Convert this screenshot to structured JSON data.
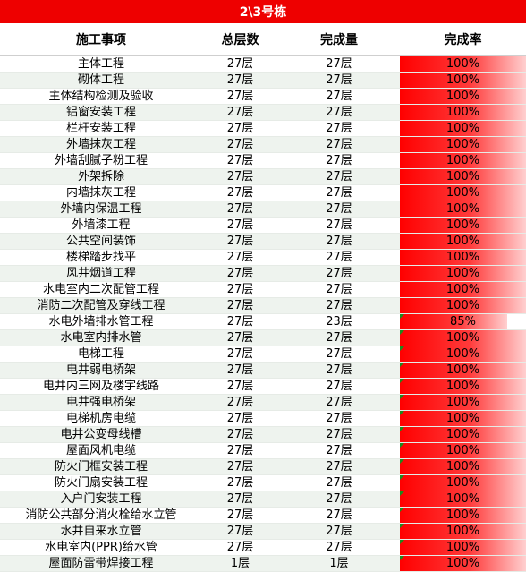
{
  "title": "2\\3号栋",
  "headers": {
    "name": "施工事项",
    "total": "总层数",
    "done": "完成量",
    "rate": "完成率"
  },
  "rows": [
    {
      "name": "主体工程",
      "total": "27层",
      "done": "27层",
      "rate": "100%",
      "pct": 1.0
    },
    {
      "name": "砌体工程",
      "total": "27层",
      "done": "27层",
      "rate": "100%",
      "pct": 1.0
    },
    {
      "name": "主体结构检测及验收",
      "total": "27层",
      "done": "27层",
      "rate": "100%",
      "pct": 1.0
    },
    {
      "name": "铝窗安装工程",
      "total": "27层",
      "done": "27层",
      "rate": "100%",
      "pct": 1.0
    },
    {
      "name": "栏杆安装工程",
      "total": "27层",
      "done": "27层",
      "rate": "100%",
      "pct": 1.0
    },
    {
      "name": "外墙抹灰工程",
      "total": "27层",
      "done": "27层",
      "rate": "100%",
      "pct": 1.0
    },
    {
      "name": "外墙刮腻子粉工程",
      "total": "27层",
      "done": "27层",
      "rate": "100%",
      "pct": 1.0
    },
    {
      "name": "外架拆除",
      "total": "27层",
      "done": "27层",
      "rate": "100%",
      "pct": 1.0
    },
    {
      "name": "内墙抹灰工程",
      "total": "27层",
      "done": "27层",
      "rate": "100%",
      "pct": 1.0
    },
    {
      "name": "外墙内保温工程",
      "total": "27层",
      "done": "27层",
      "rate": "100%",
      "pct": 1.0
    },
    {
      "name": "外墙漆工程",
      "total": "27层",
      "done": "27层",
      "rate": "100%",
      "pct": 1.0
    },
    {
      "name": "公共空间装饰",
      "total": "27层",
      "done": "27层",
      "rate": "100%",
      "pct": 1.0
    },
    {
      "name": "楼梯踏步找平",
      "total": "27层",
      "done": "27层",
      "rate": "100%",
      "pct": 1.0
    },
    {
      "name": "风井烟道工程",
      "total": "27层",
      "done": "27层",
      "rate": "100%",
      "pct": 1.0
    },
    {
      "name": "水电室内二次配管工程",
      "total": "27层",
      "done": "27层",
      "rate": "100%",
      "pct": 1.0
    },
    {
      "name": "消防二次配管及穿线工程",
      "total": "27层",
      "done": "27层",
      "rate": "100%",
      "pct": 1.0
    },
    {
      "name": "水电外墙排水管工程",
      "total": "27层",
      "done": "23层",
      "rate": "85%",
      "pct": 0.85
    },
    {
      "name": "水电室内排水管",
      "total": "27层",
      "done": "27层",
      "rate": "100%",
      "pct": 1.0
    },
    {
      "name": "电梯工程",
      "total": "27层",
      "done": "27层",
      "rate": "100%",
      "pct": 1.0
    },
    {
      "name": "电井弱电桥架",
      "total": "27层",
      "done": "27层",
      "rate": "100%",
      "pct": 1.0
    },
    {
      "name": "电井内三网及楼宇线路",
      "total": "27层",
      "done": "27层",
      "rate": "100%",
      "pct": 1.0
    },
    {
      "name": "电井强电桥架",
      "total": "27层",
      "done": "27层",
      "rate": "100%",
      "pct": 1.0
    },
    {
      "name": "电梯机房电缆",
      "total": "27层",
      "done": "27层",
      "rate": "100%",
      "pct": 1.0
    },
    {
      "name": "电井公变母线槽",
      "total": "27层",
      "done": "27层",
      "rate": "100%",
      "pct": 1.0
    },
    {
      "name": "屋面风机电缆",
      "total": "27层",
      "done": "27层",
      "rate": "100%",
      "pct": 1.0
    },
    {
      "name": "防火门框安装工程",
      "total": "27层",
      "done": "27层",
      "rate": "100%",
      "pct": 1.0
    },
    {
      "name": "防火门扇安装工程",
      "total": "27层",
      "done": "27层",
      "rate": "100%",
      "pct": 1.0
    },
    {
      "name": "入户门安装工程",
      "total": "27层",
      "done": "27层",
      "rate": "100%",
      "pct": 1.0
    },
    {
      "name": "消防公共部分消火栓给水立管",
      "total": "27层",
      "done": "27层",
      "rate": "100%",
      "pct": 1.0
    },
    {
      "name": "水井自来水立管",
      "total": "27层",
      "done": "27层",
      "rate": "100%",
      "pct": 1.0
    },
    {
      "name": "水电室内(PPR)给水管",
      "total": "27层",
      "done": "27层",
      "rate": "100%",
      "pct": 1.0
    },
    {
      "name": "屋面防雷带焊接工程",
      "total": "1层",
      "done": "1层",
      "rate": "100%",
      "pct": 1.0
    }
  ],
  "colors": {
    "title_bg": "#ee0000",
    "bar": "#ff0000",
    "flag": "#1e8a1e"
  }
}
